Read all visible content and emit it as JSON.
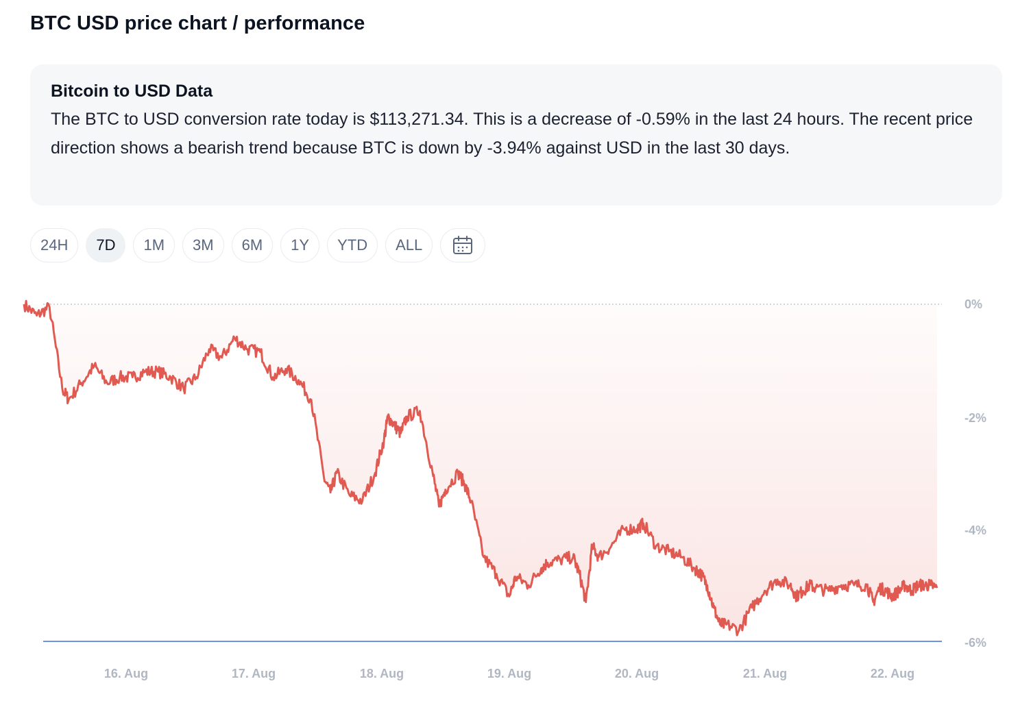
{
  "page": {
    "title": "BTC USD price chart / performance"
  },
  "info": {
    "heading": "Bitcoin to USD Data",
    "line1": "The BTC to USD conversion rate today is $113,271.34. This is a decrease of -0.59% in the last 24 hours.",
    "line2": "The recent price direction shows a bearish trend because BTC is down by -3.94% against USD in the last 30 days."
  },
  "tabs": [
    "24H",
    "7D",
    "1M",
    "3M",
    "6M",
    "1Y",
    "YTD",
    "ALL"
  ],
  "active_tab": "7D",
  "calendar_icon": "calendar-icon",
  "colors": {
    "line": "#e05a52",
    "baseline": "#3a6fd8",
    "axis": "#b0b7c3"
  },
  "chart_data": {
    "type": "area",
    "title": "",
    "xlabel": "",
    "ylabel": "",
    "x_ticks": [
      "16. Aug",
      "17. Aug",
      "18. Aug",
      "19. Aug",
      "20. Aug",
      "21. Aug",
      "22. Aug"
    ],
    "y_ticks": [
      "0%",
      "-2%",
      "-4%",
      "-6%"
    ],
    "ylim": [
      -6,
      0
    ],
    "x_range": [
      "15. Aug",
      "22. Aug"
    ],
    "grid": false,
    "legend": "none",
    "series": [
      {
        "x": [
          15.2,
          15.3,
          15.4,
          15.5,
          15.55,
          15.65,
          15.75,
          15.85,
          15.95,
          16.05,
          16.15,
          16.25,
          16.35,
          16.45,
          16.55,
          16.65,
          16.75,
          16.85,
          16.95,
          17.05,
          17.15,
          17.25,
          17.35,
          17.45,
          17.55,
          17.6,
          17.65,
          17.75,
          17.85,
          17.95,
          18.02,
          18.05,
          18.1,
          18.15,
          18.2,
          18.3,
          18.4,
          18.45,
          18.5,
          18.6,
          18.65,
          18.7,
          18.8,
          18.9,
          19.0,
          19.05,
          19.15,
          19.25,
          19.3,
          19.4,
          19.5,
          19.55,
          19.6,
          19.65,
          19.7,
          19.8,
          19.9,
          20.0,
          20.05,
          20.15,
          20.25,
          20.35,
          20.45,
          20.5,
          20.55,
          20.6,
          20.65,
          20.7,
          20.8,
          20.9,
          21.0,
          21.1,
          21.2,
          21.25,
          21.3,
          21.35,
          21.4,
          21.5,
          21.6,
          21.7,
          21.8,
          21.85,
          21.9,
          21.95,
          22.0,
          22.05,
          22.1,
          22.15,
          22.2,
          22.25,
          22.3,
          22.35
        ],
        "y": [
          0,
          -0.2,
          -0.05,
          -1.5,
          -1.7,
          -1.4,
          -1.1,
          -1.4,
          -1.3,
          -1.3,
          -1.2,
          -1.2,
          -1.3,
          -1.5,
          -1.3,
          -0.8,
          -0.95,
          -0.6,
          -0.8,
          -0.85,
          -1.3,
          -1.15,
          -1.35,
          -1.7,
          -3.1,
          -3.35,
          -3.0,
          -3.4,
          -3.5,
          -3.0,
          -2.4,
          -2.0,
          -2.15,
          -2.3,
          -2.0,
          -1.9,
          -3.0,
          -3.6,
          -3.3,
          -3.0,
          -3.2,
          -3.5,
          -4.5,
          -4.8,
          -5.2,
          -4.85,
          -5.0,
          -4.7,
          -4.6,
          -4.55,
          -4.5,
          -4.8,
          -5.3,
          -4.3,
          -4.5,
          -4.3,
          -4.0,
          -4.0,
          -3.9,
          -4.3,
          -4.4,
          -4.5,
          -4.7,
          -4.8,
          -5.0,
          -5.4,
          -5.7,
          -5.7,
          -5.8,
          -5.4,
          -5.1,
          -4.9,
          -5.0,
          -5.2,
          -5.1,
          -5.0,
          -5.05,
          -5.1,
          -5.0,
          -5.0,
          -5.0,
          -5.3,
          -5.05,
          -5.1,
          -5.2,
          -5.1,
          -5.0,
          -5.1,
          -5.0,
          -5.0,
          -5.0,
          -5.05
        ]
      }
    ]
  }
}
